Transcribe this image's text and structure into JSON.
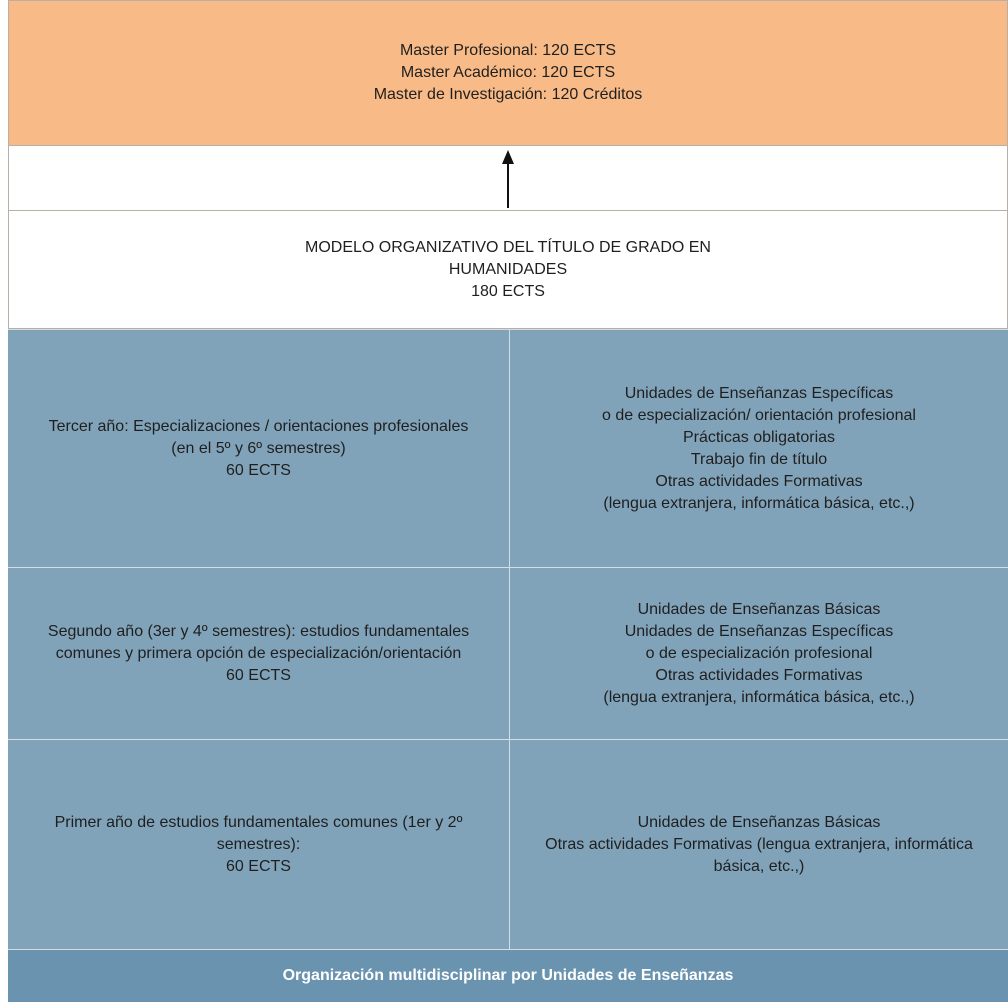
{
  "masters": {
    "lines": [
      "Master Profesional: 120 ECTS",
      "Master Académico: 120 ECTS",
      "Master de Investigación: 120 Créditos"
    ]
  },
  "model": {
    "lines": [
      "MODELO ORGANIZATIVO DEL TÍTULO DE GRADO EN",
      "HUMANIDADES",
      "180 ECTS"
    ]
  },
  "rows": [
    {
      "left": [
        "Tercer año: Especializaciones / orientaciones profesionales",
        "(en el 5º y 6º semestres)",
        "60 ECTS"
      ],
      "right": [
        "Unidades de Enseñanzas Específicas",
        "o de especialización/ orientación profesional",
        "Prácticas obligatorias",
        "Trabajo fin de título",
        "Otras actividades Formativas",
        "(lengua extranjera, informática básica, etc.,)"
      ]
    },
    {
      "left": [
        "Segundo año (3er y 4º semestres): estudios fundamentales",
        "comunes y primera opción de especialización/orientación",
        "60 ECTS"
      ],
      "right": [
        "Unidades de Enseñanzas Básicas",
        "Unidades de Enseñanzas Específicas",
        "o de especialización profesional",
        "Otras actividades Formativas",
        "(lengua extranjera, informática básica, etc.,)"
      ]
    },
    {
      "left": [
        "Primer año de estudios fundamentales comunes (1er y 2º",
        "semestres):",
        "60 ECTS"
      ],
      "right": [
        "Unidades de Enseñanzas Básicas",
        "Otras actividades Formativas (lengua extranjera, informática",
        "básica, etc.,)"
      ]
    }
  ],
  "footer": {
    "label": "Organización multidisciplinar por Unidades de Enseñanzas"
  },
  "colors": {
    "masters_bg": "#f8bb87",
    "row_bg": "#81a3b9",
    "footer_bg": "#6a93af"
  }
}
